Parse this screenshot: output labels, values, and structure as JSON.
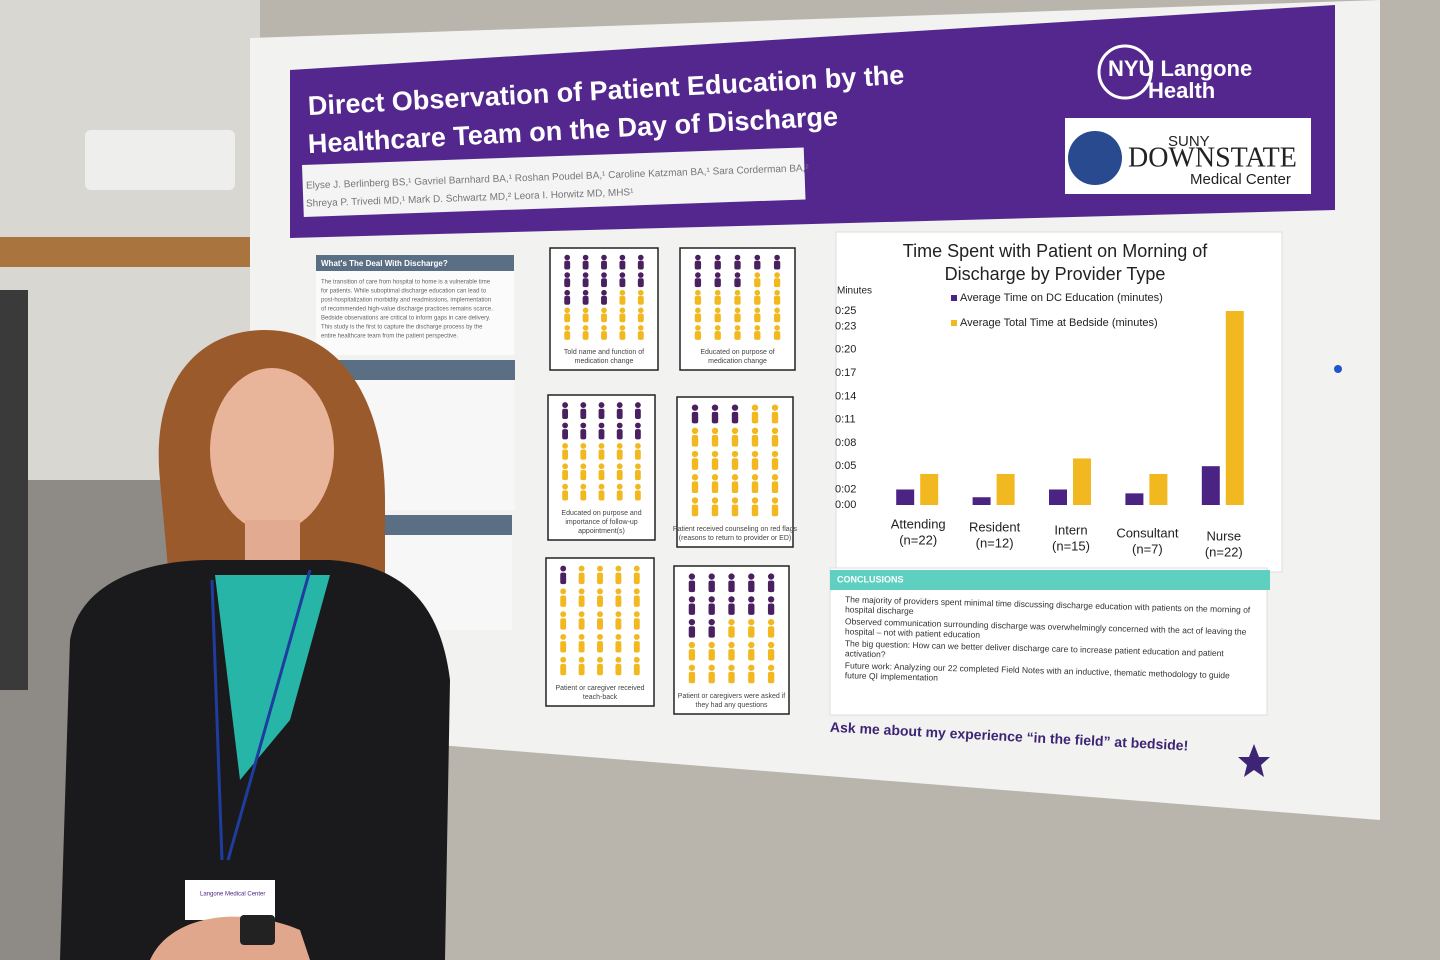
{
  "poster": {
    "title_lines": [
      "Direct Observation of Patient Education by the",
      "Healthcare Team on the Day of Discharge"
    ],
    "authors_lines": [
      "Elyse J. Berlinberg BS,¹ Gavriel Barnhard BA,¹ Roshan Poudel BA,¹ Caroline Katzman BA,¹ Sara Corderman BA,²",
      "Shreya P. Trivedi MD,¹ Mark D. Schwartz MD,² Leora I. Horwitz MD, MHS¹"
    ],
    "logos": {
      "nyu": [
        "NYU Langone",
        "Health"
      ],
      "suny": "SUNY",
      "downstate": "DOWNSTATE",
      "medical_center": "Medical Center"
    },
    "intro": {
      "heading": "What's The Deal With Discharge?",
      "lines": [
        "The transition of care from hospital to home is a vulnerable time",
        "for patients. While suboptimal discharge education can lead to",
        "post-hospitalization morbidity and readmissions, implementation",
        "of recommended high-value discharge practices remains scarce.",
        "Bedside observations are critical to inform gaps in care delivery.",
        "This study is the first to capture the discharge process by the",
        "entire healthcare team from the patient perspective."
      ]
    },
    "panels": [
      {
        "caption": [
          "Told name and function of",
          "medication change"
        ],
        "highlighted": 13,
        "total": 25
      },
      {
        "caption": [
          "Educated on purpose of",
          "medication change"
        ],
        "highlighted": 8,
        "total": 25
      },
      {
        "caption": [
          "Educated on purpose and",
          "importance of follow-up",
          "appointment(s)"
        ],
        "highlighted": 10,
        "total": 25
      },
      {
        "caption": [
          "Patient received counseling on red flags",
          "(reasons to return to provider or ED)"
        ],
        "highlighted": 3,
        "total": 25
      },
      {
        "caption": [
          "Patient or caregiver received",
          "teach-back"
        ],
        "highlighted": 1,
        "total": 25
      },
      {
        "caption": [
          "Patient or caregivers were asked if",
          "they had any questions"
        ],
        "highlighted": 12,
        "total": 25
      }
    ],
    "conclusions": {
      "heading": "CONCLUSIONS",
      "lines": [
        "The majority of providers spent minimal time discussing discharge education with patients on the morning of",
        "hospital discharge",
        "Observed communication surrounding discharge was overwhelmingly concerned with the act of leaving the",
        "hospital – not with patient education",
        "The big question: How can we better deliver discharge care to increase patient education and patient",
        "activation?",
        "Future work: Analyzing our 22 completed Field Notes with an inductive, thematic methodology to guide",
        "future QI implementation"
      ]
    },
    "footer": "Ask me about my experience “in the field” at bedside!"
  },
  "chart_data": {
    "type": "bar",
    "title": [
      "Time Spent with Patient on Morning of",
      "Discharge by Provider Type"
    ],
    "y_label": "Minutes",
    "categories": [
      "Attending",
      "Resident",
      "Intern",
      "Consultant",
      "Nurse"
    ],
    "category_notes": [
      "(n=22)",
      "(n=12)",
      "(n=15)",
      "(n=7)",
      "(n=22)"
    ],
    "series": [
      {
        "name": "Average Time on DC Education (minutes)",
        "color": "#4b2483",
        "values": [
          2,
          1,
          2,
          1.5,
          5
        ]
      },
      {
        "name": "Average Total Time at Bedside (minutes)",
        "color": "#f2b81f",
        "values": [
          4,
          4,
          6,
          4,
          25
        ]
      }
    ],
    "ylim": [
      0,
      25
    ],
    "yticks": [
      {
        "value": 0,
        "label": "0:00"
      },
      {
        "value": 2,
        "label": "0:02"
      },
      {
        "value": 5,
        "label": "0:05"
      },
      {
        "value": 8,
        "label": "0:08"
      },
      {
        "value": 11,
        "label": "0:11"
      },
      {
        "value": 14,
        "label": "0:14"
      },
      {
        "value": 17,
        "label": "0:17"
      },
      {
        "value": 20,
        "label": "0:20"
      },
      {
        "value": 23,
        "label": "0:23"
      },
      {
        "value": 25,
        "label": "0:25"
      }
    ]
  },
  "badge": "Langone Medical Center"
}
